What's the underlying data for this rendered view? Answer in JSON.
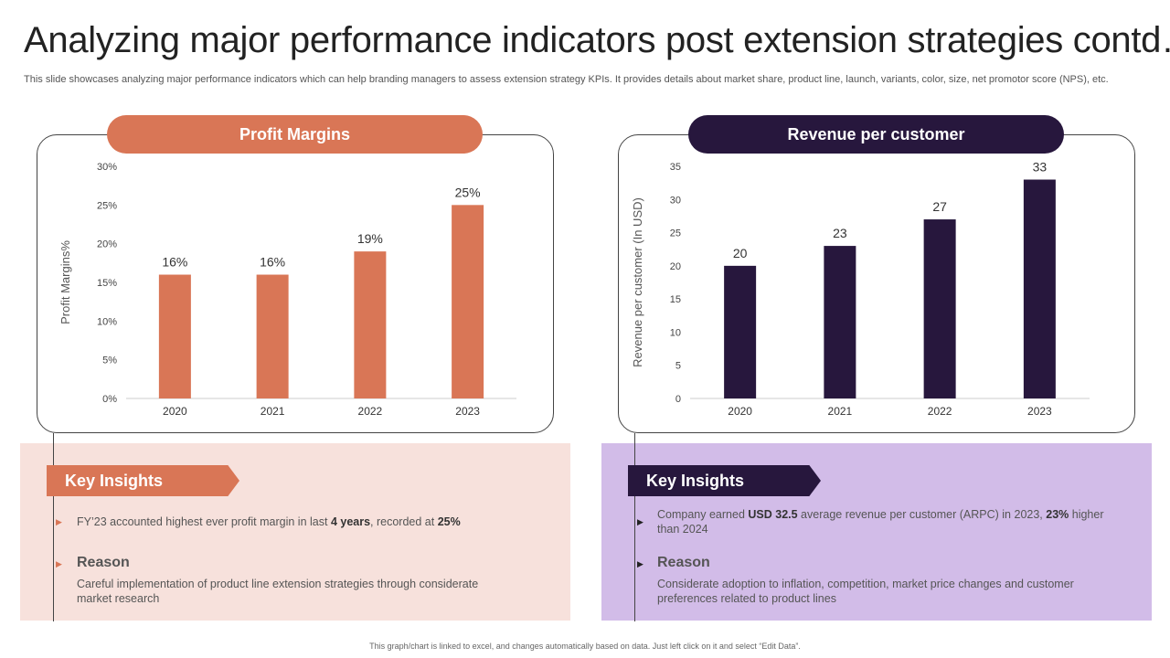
{
  "title": "Analyzing major performance indicators post extension strategies contd…",
  "subtitle": "This slide showcases analyzing major performance indicators which can help branding managers to assess extension strategy KPIs. It provides details about market share, product line, launch, variants, color, size, net promotor score (NPS), etc.",
  "colors": {
    "profit": "#d97656",
    "revenue": "#27173d",
    "profit_bg": "#f7e1dc",
    "revenue_bg": "#d2bce8"
  },
  "left_panel": {
    "header": "Profit Margins"
  },
  "right_panel": {
    "header": "Revenue per customer"
  },
  "chart_data": [
    {
      "type": "bar",
      "title": "Profit Margins",
      "categories": [
        "2020",
        "2021",
        "2022",
        "2023"
      ],
      "values": [
        16,
        16,
        19,
        25
      ],
      "data_labels": [
        "16%",
        "16%",
        "19%",
        "25%"
      ],
      "ylabel": "Profit Margins%",
      "xlabel": "",
      "ylim": [
        0,
        30
      ],
      "yticks": [
        "0%",
        "5%",
        "10%",
        "15%",
        "20%",
        "25%",
        "30%"
      ],
      "ytick_values": [
        0,
        5,
        10,
        15,
        20,
        25,
        30
      ],
      "grid": false
    },
    {
      "type": "bar",
      "title": "Revenue per customer",
      "categories": [
        "2020",
        "2021",
        "2022",
        "2023"
      ],
      "values": [
        20,
        23,
        27,
        33
      ],
      "data_labels": [
        "20",
        "23",
        "27",
        "33"
      ],
      "ylabel": "Revenue per customer (In USD)",
      "xlabel": "",
      "ylim": [
        0,
        35
      ],
      "yticks": [
        "0",
        "5",
        "10",
        "15",
        "20",
        "25",
        "30",
        "35"
      ],
      "ytick_values": [
        0,
        5,
        10,
        15,
        20,
        25,
        30,
        35
      ],
      "grid": false
    }
  ],
  "insights_left": {
    "tag": "Key Insights",
    "point_pre": "FY’23 accounted highest ever profit margin in last ",
    "point_b1": "4 years",
    "point_mid": ", recorded at ",
    "point_b2": "25%",
    "reason_head": "Reason",
    "reason_text": "Careful implementation of product line extension strategies through considerate market research"
  },
  "insights_right": {
    "tag": "Key Insights",
    "point_pre": "Company earned ",
    "point_b1": "USD 32.5",
    "point_mid": " average revenue per customer (ARPC) in 2023, ",
    "point_b2": "23%",
    "point_post": " higher than 2024",
    "reason_head": "Reason",
    "reason_text": "Considerate adoption to inflation, competition, market price changes and customer preferences related to product lines"
  },
  "bullets": {
    "left": "▶",
    "right": "▶"
  },
  "footer": "This graph/chart is linked to excel, and changes automatically based on data. Just left click on it and select “Edit Data”."
}
